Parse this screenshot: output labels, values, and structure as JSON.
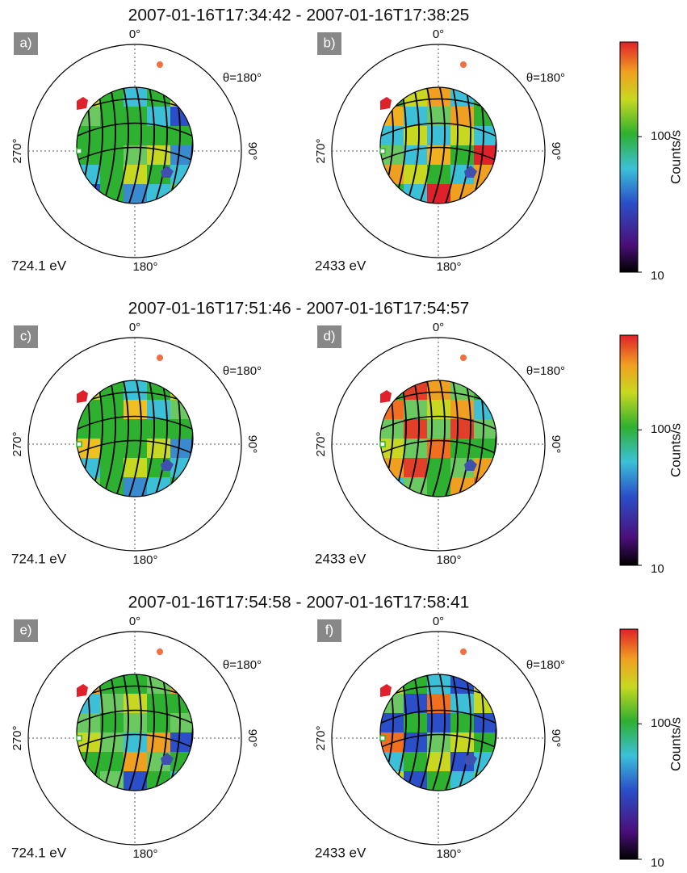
{
  "rows": [
    {
      "title": "2007-01-16T17:34:42 - 2007-01-16T17:38:25",
      "panels": [
        {
          "label": "a)",
          "energy": "724.1 eV"
        },
        {
          "label": "b)",
          "energy": "2433 eV"
        }
      ],
      "colorbar": {
        "label": "Counts/s",
        "range": [
          10,
          500
        ],
        "log": true,
        "ticks": [
          10,
          100
        ]
      }
    },
    {
      "title": "2007-01-16T17:51:46 - 2007-01-16T17:54:57",
      "panels": [
        {
          "label": "c)",
          "energy": "724.1 eV"
        },
        {
          "label": "d)",
          "energy": "2433 eV"
        }
      ],
      "colorbar": {
        "label": "Counts/s",
        "range": [
          10,
          500
        ],
        "log": true,
        "ticks": [
          10,
          100
        ]
      }
    },
    {
      "title": "2007-01-16T17:54:58 - 2007-01-16T17:58:41",
      "panels": [
        {
          "label": "e)",
          "energy": "724.1 eV"
        },
        {
          "label": "f)",
          "energy": "2433 eV"
        }
      ],
      "colorbar": {
        "label": "Counts/s",
        "range": [
          10,
          500
        ],
        "log": true,
        "ticks": [
          10,
          100
        ]
      }
    }
  ],
  "angles": {
    "top": "0°",
    "right": "90°",
    "bottom": "180°",
    "left": "270°",
    "theta": "θ=180°"
  }
}
